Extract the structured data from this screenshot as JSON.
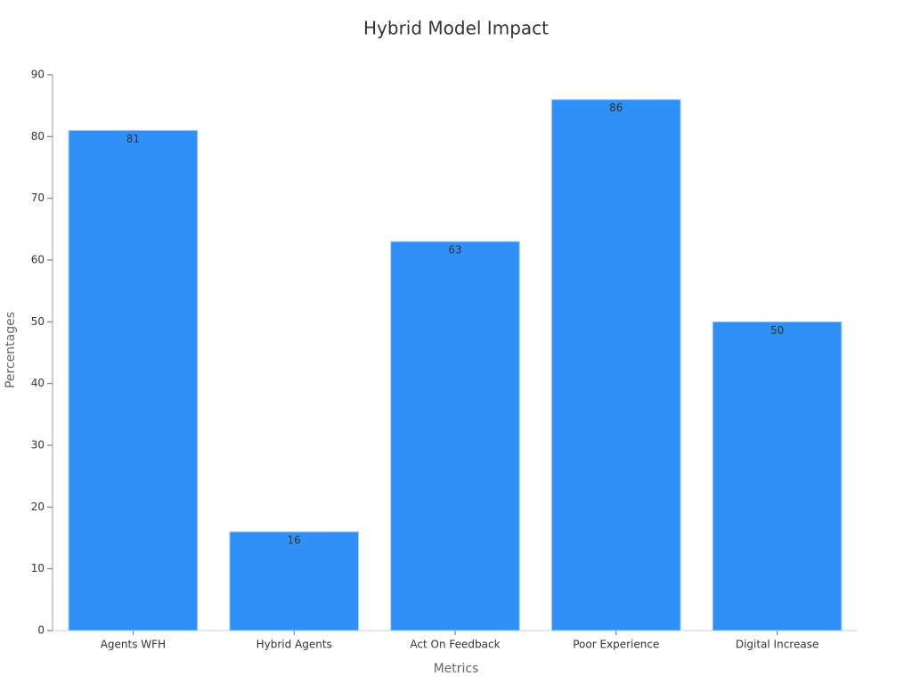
{
  "chart_data": {
    "type": "bar",
    "title": "Hybrid Model Impact",
    "x_label": "Metrics",
    "y_label": "Percentages",
    "categories": [
      "Agents WFH",
      "Hybrid Agents",
      "Act On Feedback",
      "Poor Experience",
      "Digital Increase"
    ],
    "values": [
      81,
      16,
      63,
      86,
      50
    ],
    "color": "#2f91f7",
    "ylim": [
      0,
      90
    ],
    "yticks": [
      0,
      10,
      20,
      30,
      40,
      50,
      60,
      70,
      80,
      90
    ],
    "grid": false,
    "data_labels": true
  }
}
